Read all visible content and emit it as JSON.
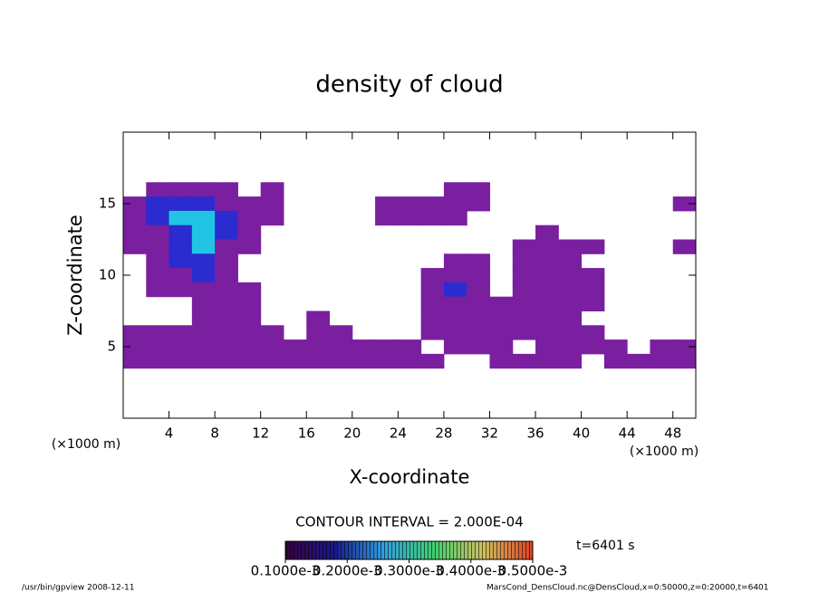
{
  "chart_data": {
    "type": "contour",
    "title": "density of cloud",
    "xlabel": "X-coordinate",
    "ylabel": "Z-coordinate",
    "xunits": "(×1000 m)",
    "yunits": "(×1000 m)",
    "xlim": [
      0,
      50
    ],
    "ylim": [
      0,
      20
    ],
    "xticks": [
      4,
      8,
      12,
      16,
      20,
      24,
      28,
      32,
      36,
      40,
      44,
      48
    ],
    "yticks": [
      5,
      10,
      15
    ],
    "x": [
      1,
      3,
      5,
      7,
      9,
      11,
      13,
      15,
      17,
      19,
      21,
      23,
      25,
      27,
      29,
      31,
      33,
      35,
      37,
      39,
      41,
      43,
      45,
      47,
      49
    ],
    "z": [
      16,
      15,
      14,
      13,
      12,
      11,
      10,
      9,
      8,
      7,
      6,
      5,
      4
    ],
    "values": [
      [
        0,
        0.0001,
        0.0001,
        0.0001,
        0.0001,
        0,
        0.0001,
        0,
        0,
        0,
        0,
        0,
        0,
        0,
        0.0001,
        0.0001,
        0,
        0,
        0,
        0,
        0,
        0,
        0,
        0,
        0
      ],
      [
        0.0001,
        0.0002,
        0.0002,
        0.0002,
        0.0001,
        0.0001,
        0.0001,
        0,
        0,
        0,
        0,
        0.0001,
        0.0001,
        0.0001,
        0.0001,
        0.0001,
        0,
        0,
        0,
        0,
        0,
        0,
        0,
        0,
        0.0001
      ],
      [
        0.0001,
        0.0002,
        0.0003,
        0.0003,
        0.0002,
        0.0001,
        0.0001,
        0,
        0,
        0,
        0,
        0.0001,
        0.0001,
        0.0001,
        0.0001,
        0,
        0,
        0,
        0,
        0,
        0,
        0,
        0,
        0,
        0
      ],
      [
        0.0001,
        0.0001,
        0.0002,
        0.0003,
        0.0002,
        0.0001,
        0,
        0,
        0,
        0,
        0,
        0,
        0,
        0,
        0,
        0,
        0,
        0,
        0.0001,
        0,
        0,
        0,
        0,
        0,
        0
      ],
      [
        0.0001,
        0.0001,
        0.0002,
        0.0003,
        0.0001,
        0.0001,
        0,
        0,
        0,
        0,
        0,
        0,
        0,
        0,
        0,
        0,
        0,
        0.0001,
        0.0001,
        0.0001,
        0.0001,
        0,
        0,
        0,
        0.0001
      ],
      [
        0,
        0.0001,
        0.0002,
        0.0002,
        0.0001,
        0,
        0,
        0,
        0,
        0,
        0,
        0,
        0,
        0,
        0.0001,
        0.0001,
        0,
        0.0001,
        0.0001,
        0.0001,
        0,
        0,
        0,
        0,
        0
      ],
      [
        0,
        0.0001,
        0.0001,
        0.0002,
        0.0001,
        0,
        0,
        0,
        0,
        0,
        0,
        0,
        0,
        0.0001,
        0.0001,
        0.0001,
        0,
        0.0001,
        0.0001,
        0.0001,
        0.0001,
        0,
        0,
        0,
        0
      ],
      [
        0,
        0.0001,
        0.0001,
        0.0001,
        0.0001,
        0.0001,
        0,
        0,
        0,
        0,
        0,
        0,
        0,
        0.0001,
        0.0002,
        0.0001,
        0,
        0.0001,
        0.0001,
        0.0001,
        0.0001,
        0,
        0,
        0,
        0
      ],
      [
        0,
        0,
        0,
        0.0001,
        0.0001,
        0.0001,
        0,
        0,
        0,
        0,
        0,
        0,
        0,
        0.0001,
        0.0001,
        0.0001,
        0.0001,
        0.0001,
        0.0001,
        0.0001,
        0.0001,
        0,
        0,
        0,
        0
      ],
      [
        0,
        0,
        0,
        0.0001,
        0.0001,
        0.0001,
        0,
        0,
        0.0001,
        0,
        0,
        0,
        0,
        0.0001,
        0.0001,
        0.0001,
        0.0001,
        0.0001,
        0.0001,
        0.0001,
        0,
        0,
        0,
        0,
        0
      ],
      [
        0.0001,
        0.0001,
        0.0001,
        0.0001,
        0.0001,
        0.0001,
        0.0001,
        0,
        0.0001,
        0.0001,
        0,
        0,
        0,
        0.0001,
        0.0001,
        0.0001,
        0.0001,
        0.0001,
        0.0001,
        0.0001,
        0.0001,
        0,
        0,
        0,
        0
      ],
      [
        0.0001,
        0.0001,
        0.0001,
        0.0001,
        0.0001,
        0.0001,
        0.0001,
        0.0001,
        0.0001,
        0.0001,
        0.0001,
        0.0001,
        0.0001,
        0,
        0.0001,
        0.0001,
        0.0001,
        0,
        0.0001,
        0.0001,
        0.0001,
        0.0001,
        0,
        0.0001,
        0.0001
      ],
      [
        0.0001,
        0.0001,
        0.0001,
        0.0001,
        0.0001,
        0.0001,
        0.0001,
        0.0001,
        0.0001,
        0.0001,
        0.0001,
        0.0001,
        0.0001,
        0.0001,
        0,
        0,
        0.0001,
        0.0001,
        0.0001,
        0.0001,
        0,
        0.0001,
        0.0001,
        0.0001,
        0.0001
      ]
    ],
    "level_colors": [
      [
        "#7a1fa0",
        0.0001
      ],
      [
        "#2a2ccf",
        0.0002
      ],
      [
        "#22c4e4",
        0.0003
      ]
    ],
    "contour_interval": "CONTOUR INTERVAL = 2.000E-04",
    "time": "t=6401 s",
    "colorbar_lim": [
      0.0001,
      0.0005
    ],
    "colorbar_ticks": [
      {
        "value": 0.0001,
        "label": "0.1000e-3"
      },
      {
        "value": 0.0002,
        "label": "0.2000e-3"
      },
      {
        "value": 0.0003,
        "label": "0.3000e-3"
      },
      {
        "value": 0.0004,
        "label": "0.4000e-3"
      },
      {
        "value": 0.0005,
        "label": "0.5000e-3"
      }
    ],
    "footer_left": "/usr/bin/gpview  2008-12-11",
    "footer_right": "MarsCond_DensCloud.nc@DensCloud,x=0:50000,z=0:20000,t=6401"
  }
}
